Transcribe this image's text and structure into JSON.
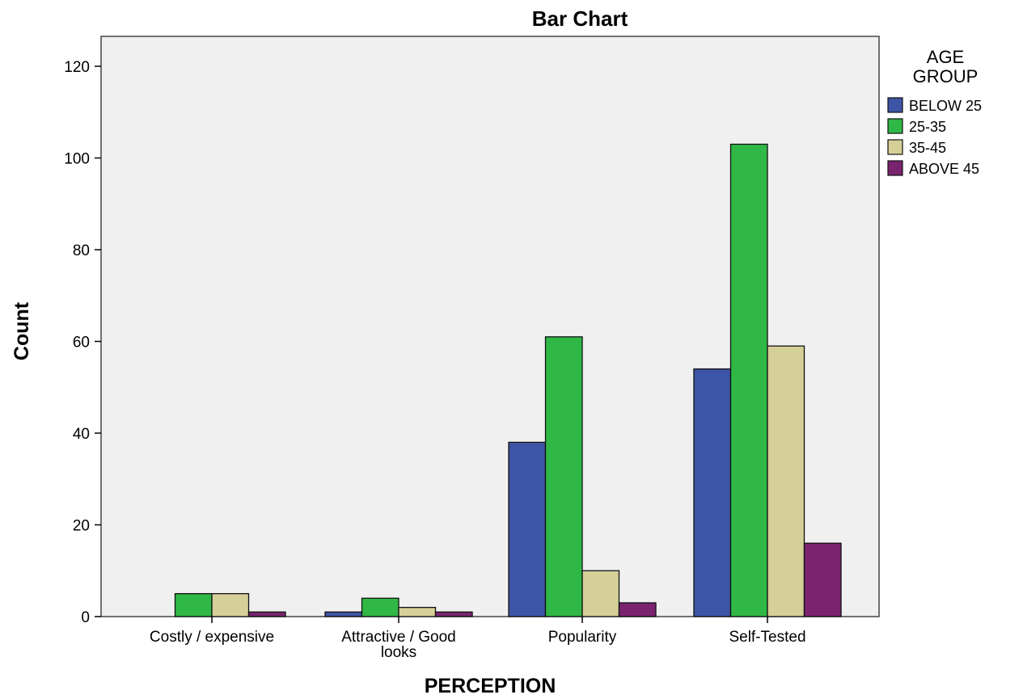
{
  "chart_data": {
    "type": "bar",
    "title": "Bar Chart",
    "xlabel": "PERCEPTION",
    "ylabel": "Count",
    "ylim": [
      0,
      120
    ],
    "yticks": [
      0,
      20,
      40,
      60,
      80,
      100,
      120
    ],
    "grid": false,
    "legend_position": "right",
    "legend_title": [
      "AGE",
      "GROUP"
    ],
    "categories": [
      [
        "Costly / expensive"
      ],
      [
        "Attractive / Good",
        "looks"
      ],
      [
        "Popularity"
      ],
      [
        "Self-Tested"
      ]
    ],
    "series": [
      {
        "name": "BELOW 25",
        "color": "#3d55a6",
        "values": [
          0,
          1,
          38,
          54
        ]
      },
      {
        "name": "25-35",
        "color": "#2fb846",
        "values": [
          5,
          4,
          61,
          103
        ]
      },
      {
        "name": "35-45",
        "color": "#d5d098",
        "values": [
          5,
          2,
          10,
          59
        ]
      },
      {
        "name": "ABOVE 45",
        "color": "#7a2470",
        "values": [
          1,
          1,
          3,
          16
        ]
      }
    ],
    "plot_background": "#f0f0f0"
  }
}
